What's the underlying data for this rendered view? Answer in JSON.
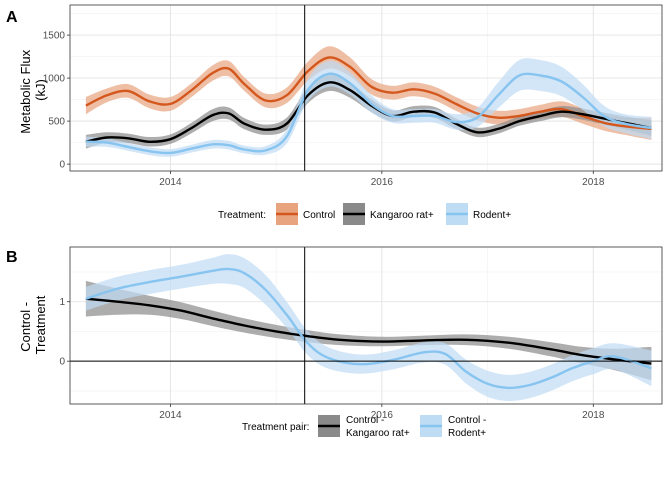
{
  "chart_data": [
    {
      "panel_label": "A",
      "type": "line",
      "ylabel_lines": [
        "Metabolic Flux",
        "(kJ)"
      ],
      "xlim": [
        2013.05,
        2018.65
      ],
      "ylim": [
        -80,
        1850
      ],
      "x_ticks": [
        2014,
        2016,
        2018
      ],
      "x_tick_labels": [
        "2014",
        "2016",
        "2018"
      ],
      "y_ticks": [
        0,
        500,
        1000,
        1500
      ],
      "y_tick_labels": [
        "0",
        "500",
        "1000",
        "1500"
      ],
      "vline_x": 2015.27,
      "grid": true,
      "legend": {
        "title": "Treatment:",
        "position": "bottom",
        "entries": [
          "Control",
          "Kangaroo rat+",
          "Rodent+"
        ]
      },
      "series": [
        {
          "name": "Control",
          "color": "#d4581e",
          "band_color": "#e8a47f",
          "x": [
            2013.2,
            2013.4,
            2013.6,
            2013.8,
            2014.0,
            2014.2,
            2014.4,
            2014.55,
            2014.7,
            2014.9,
            2015.1,
            2015.3,
            2015.5,
            2015.7,
            2015.9,
            2016.1,
            2016.3,
            2016.5,
            2016.7,
            2016.9,
            2017.1,
            2017.3,
            2017.5,
            2017.7,
            2017.9,
            2018.1,
            2018.3,
            2018.55
          ],
          "y": [
            680,
            800,
            850,
            730,
            700,
            860,
            1060,
            1110,
            930,
            740,
            800,
            1080,
            1240,
            1130,
            900,
            830,
            870,
            820,
            700,
            590,
            540,
            560,
            610,
            640,
            560,
            480,
            440,
            410
          ],
          "band": [
            100,
            80,
            80,
            80,
            80,
            80,
            90,
            90,
            80,
            80,
            90,
            110,
            130,
            110,
            90,
            80,
            80,
            80,
            80,
            80,
            80,
            80,
            80,
            90,
            90,
            90,
            100,
            130
          ]
        },
        {
          "name": "Kangaroo rat+",
          "color": "#000000",
          "band_color": "#8a8a8a",
          "x": [
            2013.2,
            2013.4,
            2013.6,
            2013.8,
            2014.0,
            2014.2,
            2014.4,
            2014.55,
            2014.7,
            2014.9,
            2015.1,
            2015.3,
            2015.5,
            2015.7,
            2015.9,
            2016.1,
            2016.3,
            2016.5,
            2016.7,
            2016.9,
            2017.1,
            2017.3,
            2017.5,
            2017.7,
            2017.9,
            2018.1,
            2018.3,
            2018.55
          ],
          "y": [
            260,
            310,
            300,
            260,
            290,
            420,
            570,
            590,
            470,
            400,
            470,
            800,
            950,
            860,
            680,
            560,
            610,
            600,
            470,
            370,
            410,
            500,
            560,
            610,
            580,
            530,
            480,
            420
          ],
          "band": [
            80,
            60,
            55,
            55,
            55,
            60,
            70,
            70,
            65,
            60,
            70,
            90,
            100,
            90,
            75,
            65,
            65,
            65,
            60,
            55,
            55,
            55,
            60,
            65,
            65,
            70,
            75,
            90
          ]
        },
        {
          "name": "Rodent+",
          "color": "#88c4f0",
          "band_color": "#bfdcf5",
          "x": [
            2013.2,
            2013.4,
            2013.6,
            2013.8,
            2014.0,
            2014.2,
            2014.4,
            2014.55,
            2014.7,
            2014.9,
            2015.1,
            2015.3,
            2015.5,
            2015.7,
            2015.9,
            2016.1,
            2016.3,
            2016.5,
            2016.7,
            2016.9,
            2017.1,
            2017.3,
            2017.5,
            2017.7,
            2017.9,
            2018.1,
            2018.3,
            2018.55
          ],
          "y": [
            260,
            250,
            200,
            150,
            130,
            180,
            230,
            220,
            170,
            160,
            320,
            860,
            1050,
            940,
            700,
            560,
            560,
            560,
            490,
            540,
            800,
            1030,
            1030,
            960,
            780,
            560,
            470,
            420
          ],
          "band": [
            60,
            50,
            45,
            45,
            45,
            45,
            50,
            50,
            45,
            50,
            80,
            130,
            150,
            130,
            100,
            80,
            80,
            80,
            90,
            110,
            150,
            180,
            180,
            170,
            150,
            120,
            110,
            130
          ]
        }
      ]
    },
    {
      "panel_label": "B",
      "type": "line",
      "ylabel_lines": [
        "Control -",
        "Treatment"
      ],
      "xlim": [
        2013.05,
        2018.65
      ],
      "ylim": [
        -0.72,
        1.92
      ],
      "x_ticks": [
        2014,
        2016,
        2018
      ],
      "x_tick_labels": [
        "2014",
        "2016",
        "2018"
      ],
      "y_ticks": [
        0,
        1
      ],
      "y_tick_labels": [
        "0",
        "1"
      ],
      "vline_x": 2015.27,
      "hline_y": 0,
      "grid": true,
      "legend": {
        "title": "Treatment pair:",
        "position": "bottom",
        "entries": [
          {
            "lines": [
              "Control -",
              "Kangaroo rat+"
            ]
          },
          {
            "lines": [
              "Control -",
              "Rodent+"
            ]
          }
        ]
      },
      "series": [
        {
          "name": "Control - Kangaroo rat+",
          "color": "#000000",
          "band_color": "#8a8a8a",
          "x": [
            2013.2,
            2013.5,
            2013.8,
            2014.1,
            2014.4,
            2014.7,
            2015.0,
            2015.3,
            2015.6,
            2016.0,
            2016.4,
            2016.8,
            2017.2,
            2017.6,
            2017.9,
            2018.2,
            2018.55
          ],
          "y": [
            1.05,
            1.0,
            0.94,
            0.85,
            0.72,
            0.6,
            0.5,
            0.42,
            0.36,
            0.33,
            0.35,
            0.36,
            0.31,
            0.2,
            0.1,
            0.03,
            -0.04
          ],
          "band": [
            0.3,
            0.22,
            0.16,
            0.14,
            0.13,
            0.12,
            0.11,
            0.1,
            0.09,
            0.08,
            0.08,
            0.09,
            0.1,
            0.12,
            0.14,
            0.18,
            0.28
          ]
        },
        {
          "name": "Control - Rodent+",
          "color": "#88c4f0",
          "band_color": "#bfdcf5",
          "x": [
            2013.2,
            2013.5,
            2013.8,
            2014.1,
            2014.4,
            2014.55,
            2014.7,
            2014.9,
            2015.1,
            2015.3,
            2015.5,
            2015.8,
            2016.1,
            2016.4,
            2016.6,
            2016.8,
            2017.0,
            2017.2,
            2017.4,
            2017.6,
            2017.8,
            2018.0,
            2018.2,
            2018.55
          ],
          "y": [
            1.05,
            1.22,
            1.33,
            1.42,
            1.52,
            1.55,
            1.48,
            1.2,
            0.78,
            0.3,
            0.05,
            -0.05,
            0.02,
            0.15,
            0.12,
            -0.18,
            -0.38,
            -0.45,
            -0.4,
            -0.28,
            -0.12,
            0.0,
            0.08,
            -0.12
          ],
          "band": [
            0.2,
            0.2,
            0.2,
            0.2,
            0.22,
            0.25,
            0.25,
            0.25,
            0.22,
            0.2,
            0.18,
            0.16,
            0.16,
            0.17,
            0.18,
            0.2,
            0.22,
            0.22,
            0.22,
            0.22,
            0.22,
            0.22,
            0.22,
            0.3
          ]
        }
      ]
    }
  ]
}
